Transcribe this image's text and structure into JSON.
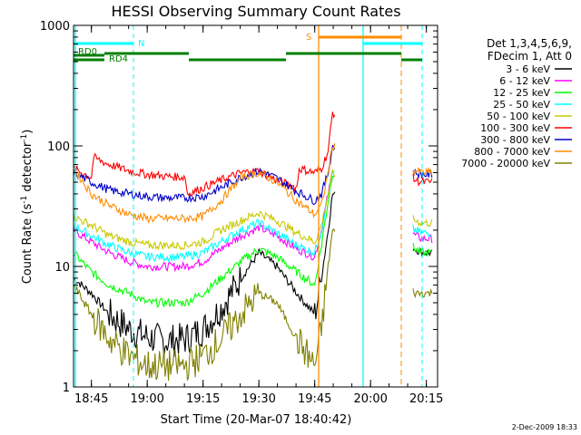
{
  "chart_data": {
    "type": "line",
    "title": "HESSI Observing Summary Count Rates",
    "xlabel": "Start Time (20-Mar-07 18:40:42)",
    "ylabel_main": "Count Rate (s",
    "ylabel_sup1": "-1",
    "ylabel_mid": " detector",
    "ylabel_sup2": "-1",
    "ylabel_end": ")",
    "yscale": "log",
    "ylim": [
      1,
      1000
    ],
    "xlim_minutes": [
      18.67,
      20.3
    ],
    "x_ticks": [
      {
        "label": "18:45",
        "v": 18.75
      },
      {
        "label": "19:00",
        "v": 19.0
      },
      {
        "label": "19:15",
        "v": 19.25
      },
      {
        "label": "19:30",
        "v": 19.5
      },
      {
        "label": "19:45",
        "v": 19.75
      },
      {
        "label": "20:00",
        "v": 20.0
      },
      {
        "label": "20:15",
        "v": 20.25
      }
    ],
    "y_ticks": [
      {
        "label": "1",
        "v": 1
      },
      {
        "label": "10",
        "v": 10
      },
      {
        "label": "100",
        "v": 100
      },
      {
        "label": "1000",
        "v": 1000
      }
    ],
    "legend_header_1": "Det 1,3,4,5,6,9,",
    "legend_header_2": "FDecim 1, Att 0",
    "series": [
      {
        "name": "3 - 6 keV",
        "color": "#000000",
        "x": [
          18.67,
          18.75,
          18.83,
          18.92,
          19.0,
          19.08,
          19.17,
          19.25,
          19.33,
          19.42,
          19.5,
          19.58,
          19.67,
          19.75,
          19.78,
          19.81,
          19.83,
          20.2,
          20.23,
          20.28
        ],
        "y": [
          8,
          6,
          4,
          3,
          2.6,
          2.4,
          2.5,
          3,
          4.5,
          8,
          13,
          10,
          6,
          4,
          8,
          20,
          40,
          14,
          13,
          13
        ]
      },
      {
        "name": "6 - 12 keV",
        "color": "#ff00ff",
        "x": [
          18.67,
          18.75,
          18.83,
          18.92,
          19.0,
          19.08,
          19.17,
          19.25,
          19.33,
          19.42,
          19.5,
          19.58,
          19.67,
          19.75,
          19.78,
          19.81,
          19.83,
          20.2,
          20.23,
          20.28
        ],
        "y": [
          20,
          16,
          13,
          11,
          10,
          10,
          10,
          11,
          14,
          18,
          21,
          18,
          14,
          12,
          20,
          40,
          60,
          18,
          17,
          17
        ]
      },
      {
        "name": "12 - 25 keV",
        "color": "#00ff00",
        "x": [
          18.67,
          18.75,
          18.83,
          18.92,
          19.0,
          19.08,
          19.17,
          19.25,
          19.33,
          19.42,
          19.5,
          19.58,
          19.67,
          19.75,
          19.78,
          19.81,
          19.83,
          20.2,
          20.23,
          20.28
        ],
        "y": [
          13,
          9,
          7,
          6,
          5,
          5,
          5,
          6,
          8,
          11,
          14,
          12,
          9,
          7,
          15,
          35,
          60,
          14,
          13,
          13
        ]
      },
      {
        "name": "25 - 50 keV",
        "color": "#00ffff",
        "x": [
          18.67,
          18.75,
          18.83,
          18.92,
          19.0,
          19.08,
          19.17,
          19.25,
          19.33,
          19.42,
          19.5,
          19.58,
          19.67,
          19.75,
          19.78,
          19.81,
          19.83,
          20.2,
          20.23,
          20.28
        ],
        "y": [
          22,
          18,
          15,
          13,
          12,
          12,
          12,
          13,
          16,
          20,
          23,
          19,
          15,
          13,
          20,
          40,
          60,
          20,
          19,
          19
        ]
      },
      {
        "name": "50 - 100 keV",
        "color": "#c8c800",
        "x": [
          18.67,
          18.75,
          18.83,
          18.92,
          19.0,
          19.08,
          19.17,
          19.25,
          19.33,
          19.42,
          19.5,
          19.58,
          19.67,
          19.75,
          19.78,
          19.81,
          19.83,
          20.2,
          20.23,
          20.28
        ],
        "y": [
          26,
          22,
          18,
          16,
          15,
          15,
          15,
          16,
          20,
          24,
          28,
          24,
          19,
          16,
          22,
          40,
          60,
          24,
          23,
          23
        ]
      },
      {
        "name": "100 - 300 keV",
        "color": "#ff0000",
        "x": [
          18.67,
          18.75,
          18.76,
          18.83,
          18.92,
          19.0,
          19.08,
          19.17,
          19.18,
          19.25,
          19.33,
          19.42,
          19.5,
          19.58,
          19.67,
          19.68,
          19.75,
          19.78,
          19.81,
          19.83,
          20.2,
          20.23,
          20.28
        ],
        "y": [
          65,
          55,
          80,
          70,
          62,
          58,
          56,
          55,
          40,
          45,
          52,
          60,
          62,
          52,
          45,
          65,
          60,
          65,
          90,
          190,
          52,
          50,
          50
        ]
      },
      {
        "name": "300 - 800 keV",
        "color": "#0000cc",
        "x": [
          18.67,
          18.75,
          18.83,
          18.92,
          19.0,
          19.08,
          19.17,
          19.25,
          19.33,
          19.42,
          19.5,
          19.58,
          19.67,
          19.75,
          19.78,
          19.81,
          19.83,
          20.2,
          20.23,
          20.28
        ],
        "y": [
          60,
          50,
          43,
          40,
          38,
          37,
          37,
          38,
          45,
          55,
          62,
          54,
          42,
          35,
          40,
          60,
          100,
          60,
          58,
          58
        ]
      },
      {
        "name": "800 - 7000 keV",
        "color": "#ff8c00",
        "x": [
          18.67,
          18.75,
          18.83,
          18.92,
          19.0,
          19.08,
          19.17,
          19.25,
          19.33,
          19.42,
          19.5,
          19.58,
          19.67,
          19.75,
          19.78,
          19.81,
          19.83,
          20.2,
          20.23,
          20.28
        ],
        "y": [
          65,
          40,
          32,
          27,
          25,
          25,
          25,
          26,
          35,
          55,
          60,
          50,
          35,
          27,
          32,
          60,
          100,
          62,
          60,
          60
        ]
      },
      {
        "name": "7000 - 20000 keV",
        "color": "#808000",
        "x": [
          18.67,
          18.75,
          18.83,
          18.92,
          19.0,
          19.08,
          19.17,
          19.25,
          19.33,
          19.42,
          19.5,
          19.58,
          19.67,
          19.75,
          19.78,
          19.81,
          19.83,
          20.2,
          20.23,
          20.28
        ],
        "y": [
          7,
          4,
          2.5,
          1.8,
          1.5,
          1.5,
          1.5,
          1.8,
          2.5,
          4,
          6,
          5,
          2.5,
          1.5,
          3,
          10,
          20,
          6,
          6,
          6
        ]
      }
    ],
    "annotations": [
      {
        "label": "N",
        "color": "#00ffff"
      },
      {
        "label": "S",
        "color": "#ff8c00"
      },
      {
        "label": "RD0",
        "color": "#008000"
      },
      {
        "label": "RD4",
        "color": "#008000"
      }
    ],
    "footer_date": "2-Dec-2009 18:33"
  }
}
